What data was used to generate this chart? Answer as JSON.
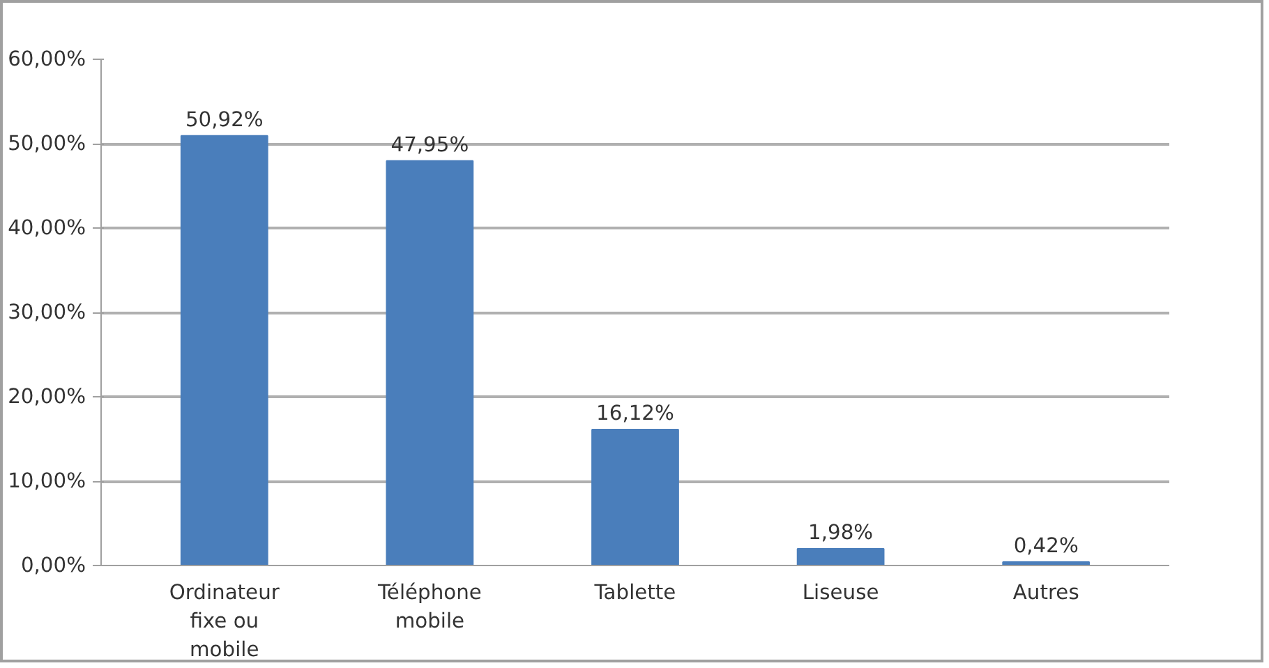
{
  "chart_data": {
    "type": "bar",
    "categories": [
      "Ordinateur\nfixe ou\nmobile",
      "Téléphone\nmobile",
      "Tablette",
      "Liseuse",
      "Autres"
    ],
    "values": [
      50.92,
      47.95,
      16.12,
      1.98,
      0.42
    ],
    "value_labels": [
      "50,92%",
      "47,95%",
      "16,12%",
      "1,98%",
      "0,42%"
    ],
    "color": "#4a7ebb",
    "ylim": [
      0,
      60
    ],
    "yticks": [
      {
        "value": 0,
        "label": "0,00%"
      },
      {
        "value": 10,
        "label": "10,00%"
      },
      {
        "value": 20,
        "label": "20,00%"
      },
      {
        "value": 30,
        "label": "30,00%"
      },
      {
        "value": 40,
        "label": "40,00%"
      },
      {
        "value": 50,
        "label": "50,00%"
      },
      {
        "value": 60,
        "label": "60,00%"
      }
    ],
    "grid": "y"
  }
}
